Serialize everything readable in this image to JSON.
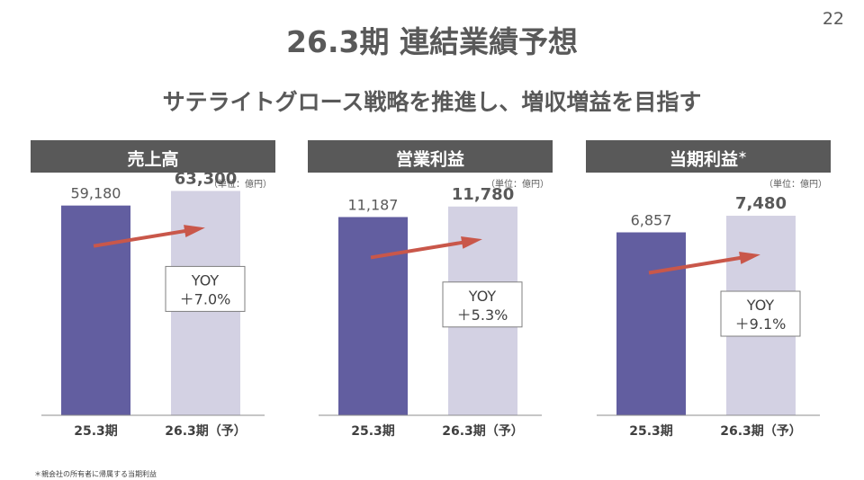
{
  "page_number": "22",
  "title": "26.3期 連結業績予想",
  "subtitle": "サテライトグロース戦略を推進し、増収増益を目指す",
  "footnote": "＊親会社の所有者に帰属する当期利益",
  "colors": {
    "actual_bar": "#625EA0",
    "forecast_bar": "#D3D1E3",
    "arrow": "#C9574A",
    "header_bg": "#595959",
    "axis": "#8C8C8C"
  },
  "chart_data": [
    {
      "type": "bar",
      "title": "売上高",
      "title_mark": "",
      "unit": "（単位：億円）",
      "categories": [
        "25.3期",
        "26.3期（予）"
      ],
      "values": [
        59180,
        63300
      ],
      "value_labels": [
        "59,180",
        "63,300"
      ],
      "ylim": [
        0,
        70000
      ],
      "yoy_label": "YOY",
      "yoy_value": "＋7.0%",
      "legend": "none",
      "grid": false
    },
    {
      "type": "bar",
      "title": "営業利益",
      "title_mark": "",
      "unit": "（単位：億円）",
      "categories": [
        "25.3期",
        "26.3期（予）"
      ],
      "values": [
        11187,
        11780
      ],
      "value_labels": [
        "11,187",
        "11,780"
      ],
      "ylim": [
        0,
        14000
      ],
      "yoy_label": "YOY",
      "yoy_value": "＋5.3%",
      "legend": "none",
      "grid": false
    },
    {
      "type": "bar",
      "title": "当期利益",
      "title_mark": "＊",
      "unit": "（単位：億円）",
      "categories": [
        "25.3期",
        "26.3期（予）"
      ],
      "values": [
        6857,
        7480
      ],
      "value_labels": [
        "6,857",
        "7,480"
      ],
      "ylim": [
        0,
        9300
      ],
      "yoy_label": "YOY",
      "yoy_value": "＋9.1%",
      "legend": "none",
      "grid": false
    }
  ]
}
